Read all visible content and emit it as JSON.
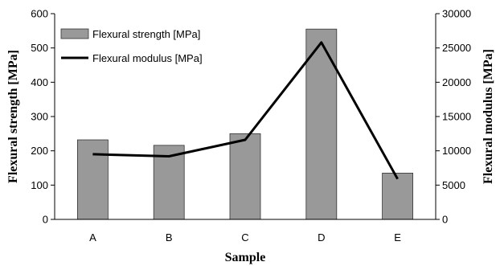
{
  "chart_data": {
    "type": "bar",
    "categories": [
      "A",
      "B",
      "C",
      "D",
      "E"
    ],
    "xlabel": "Sample",
    "ylabel": "Flexural strength [MPa]",
    "y2label": "Flexural modulus [MPa]",
    "ylim": [
      0,
      600
    ],
    "y2lim": [
      0,
      30000
    ],
    "yticks": [
      0,
      100,
      200,
      300,
      400,
      500,
      600
    ],
    "y2ticks": [
      0,
      5000,
      10000,
      15000,
      20000,
      25000,
      30000
    ],
    "grid": false,
    "legend_position": "top-left",
    "series": [
      {
        "name": "Flexural strength [MPa]",
        "type": "bar",
        "axis": "left",
        "color": "#999999",
        "values": [
          232,
          216,
          250,
          555,
          135
        ]
      },
      {
        "name": "Flexural modulus [MPa]",
        "type": "line",
        "axis": "right",
        "color": "#000000",
        "values": [
          9500,
          9200,
          11600,
          25800,
          5900
        ]
      }
    ]
  }
}
